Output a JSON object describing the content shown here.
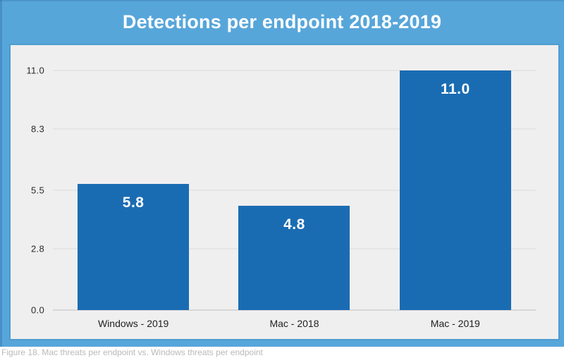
{
  "title": "Detections per endpoint 2018-2019",
  "caption": "Figure 18. Mac threats per endpoint vs. Windows threats per endpoint",
  "colors": {
    "frame_blue": "#57a6da",
    "panel_bg": "#f0eff0",
    "panel_border": "#4e9ccf",
    "bar_blue": "#1a6cb2",
    "gridline": "#e6e5e6",
    "baseline": "#d8d7d8",
    "tick_text": "#2b2b2b",
    "xlabel_text": "#1f1f1f",
    "bar_label_text": "#ffffff",
    "title_text": "#ffffff",
    "caption_text": "#b9b9b9"
  },
  "chart_data": {
    "type": "bar",
    "title": "Detections per endpoint 2018-2019",
    "categories": [
      "Windows - 2019",
      "Mac - 2018",
      "Mac - 2019"
    ],
    "values": [
      5.8,
      4.8,
      11.0
    ],
    "value_labels": [
      "5.8",
      "4.8",
      "11.0"
    ],
    "yticks": [
      "0.0",
      "2.8",
      "5.5",
      "8.3",
      "11.0"
    ],
    "ytick_values": [
      0,
      2.8,
      5.5,
      8.3,
      11.0
    ],
    "ylim": [
      0,
      11
    ],
    "xlabel": "",
    "ylabel": "",
    "grid": "horizontal",
    "legend": "none",
    "bar_color": "#1a6cb2",
    "value_label_position": "inside-top"
  }
}
